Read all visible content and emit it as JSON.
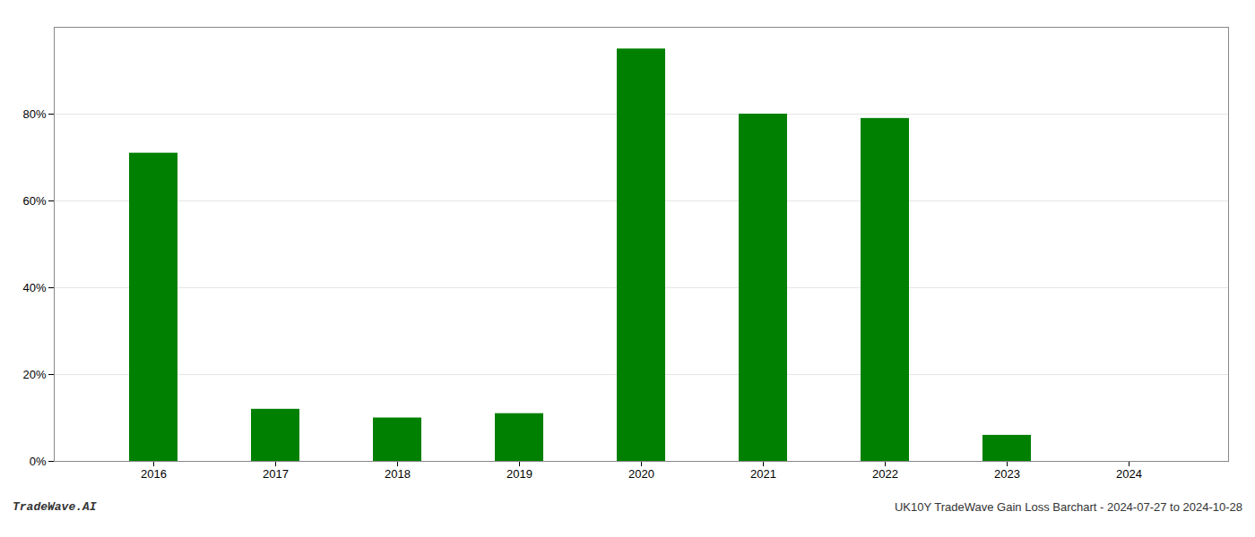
{
  "chart_data": {
    "type": "bar",
    "categories": [
      "2016",
      "2017",
      "2018",
      "2019",
      "2020",
      "2021",
      "2022",
      "2023",
      "2024"
    ],
    "values": [
      0.71,
      0.12,
      0.1,
      0.11,
      0.95,
      0.8,
      0.79,
      0.06,
      0.0
    ],
    "color": "#008000",
    "ylim": [
      0,
      1.0
    ],
    "yticks": [
      {
        "value": 0.0,
        "label": "0%"
      },
      {
        "value": 0.2,
        "label": "20%"
      },
      {
        "value": 0.4,
        "label": "40%"
      },
      {
        "value": 0.6,
        "label": "60%"
      },
      {
        "value": 0.8,
        "label": "80%"
      }
    ],
    "grid": true,
    "annotations": [
      "TradeWave.AI",
      "UK10Y TradeWave Gain Loss Barchart - 2024-07-27 to 2024-10-28"
    ]
  }
}
